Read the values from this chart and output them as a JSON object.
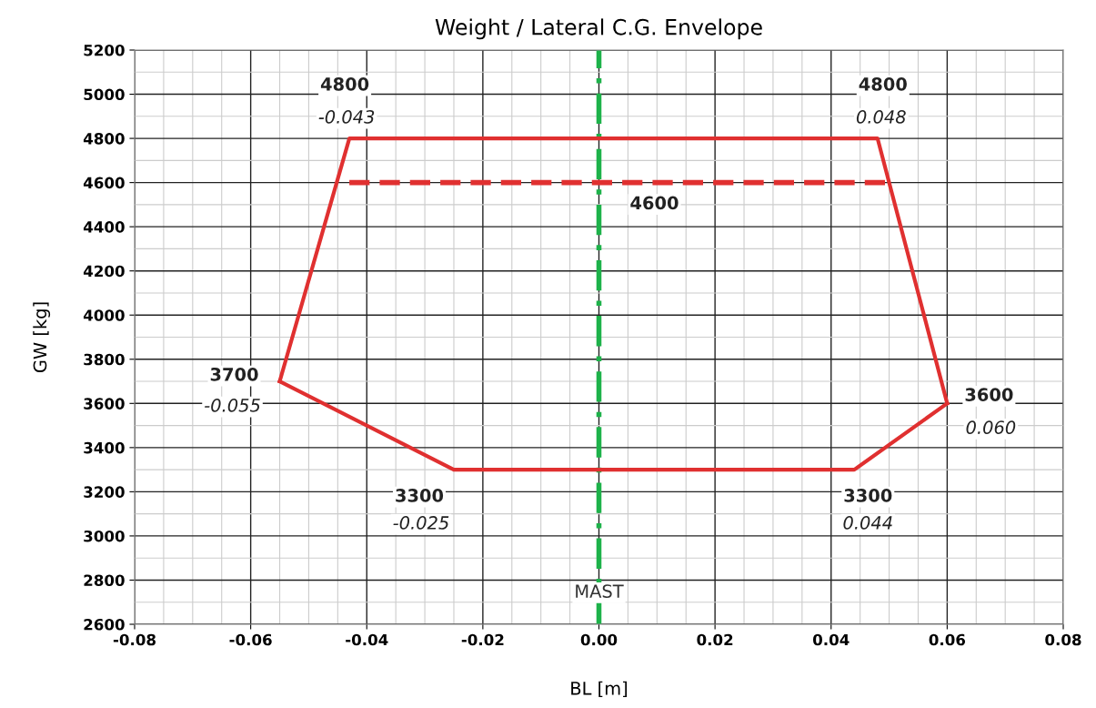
{
  "chart_data": {
    "type": "line",
    "title": "Weight / Lateral C.G. Envelope",
    "xlabel": "BL [m]",
    "ylabel": "GW [kg]",
    "series": [
      {
        "color": "#e03030",
        "x": [
          -0.043,
          0.05
        ],
        "values": [
          4600,
          4600
        ],
        "line_style": "dashed"
      },
      {
        "color": "#e03030",
        "x": [
          -0.055,
          -0.043,
          0.048,
          0.06
        ],
        "values": [
          3700,
          4800,
          4800,
          3600
        ],
        "line_style": "solid"
      },
      {
        "color": "#e03030",
        "x": [
          -0.055,
          -0.025,
          0.044,
          0.06
        ],
        "values": [
          3700,
          3300,
          3300,
          3600
        ],
        "line_style": "solid"
      }
    ],
    "ref_lines": [
      {
        "axis": "x",
        "value": 0,
        "label": "MAST",
        "color": "#1db24a",
        "line_style": "dashdot"
      }
    ],
    "annotations": [
      {
        "text": "4800",
        "x": -0.043,
        "y": 4800
      },
      {
        "text": "-0.043",
        "x": -0.043,
        "y": 4800
      },
      {
        "text": "4800",
        "x": 0.048,
        "y": 4800
      },
      {
        "text": "0.048",
        "x": 0.048,
        "y": 4800
      },
      {
        "text": "3700",
        "x": -0.055,
        "y": 3700
      },
      {
        "text": "-0.055",
        "x": -0.055,
        "y": 3700
      },
      {
        "text": "3600",
        "x": 0.06,
        "y": 3600
      },
      {
        "text": "0.060",
        "x": 0.06,
        "y": 3600
      },
      {
        "text": "3300",
        "x": -0.025,
        "y": 3300
      },
      {
        "text": "-0.025",
        "x": -0.025,
        "y": 3300
      },
      {
        "text": "3300",
        "x": 0.044,
        "y": 3300
      },
      {
        "text": "0.044",
        "x": 0.044,
        "y": 3300
      },
      {
        "text": "4600",
        "x": 0,
        "y": 4600
      }
    ],
    "xlim": [
      -0.08,
      0.08
    ],
    "xticks": [
      {
        "value": -0.08,
        "label": "-0.08"
      },
      {
        "value": -0.06,
        "label": "-0.06"
      },
      {
        "value": -0.04,
        "label": "-0.04"
      },
      {
        "value": -0.02,
        "label": "-0.02"
      },
      {
        "value": 0,
        "label": "0.00"
      },
      {
        "value": 0.02,
        "label": "0.02"
      },
      {
        "value": 0.04,
        "label": "0.04"
      },
      {
        "value": 0.06,
        "label": "0.06"
      },
      {
        "value": 0.08,
        "label": "0.08"
      }
    ],
    "ylim": [
      2600,
      5200
    ],
    "yticks": [
      2600,
      2800,
      3000,
      3200,
      3400,
      3600,
      3800,
      4000,
      4200,
      4400,
      4600,
      4800,
      5000,
      5200
    ],
    "grid": true,
    "legend": false,
    "marker": "none"
  }
}
